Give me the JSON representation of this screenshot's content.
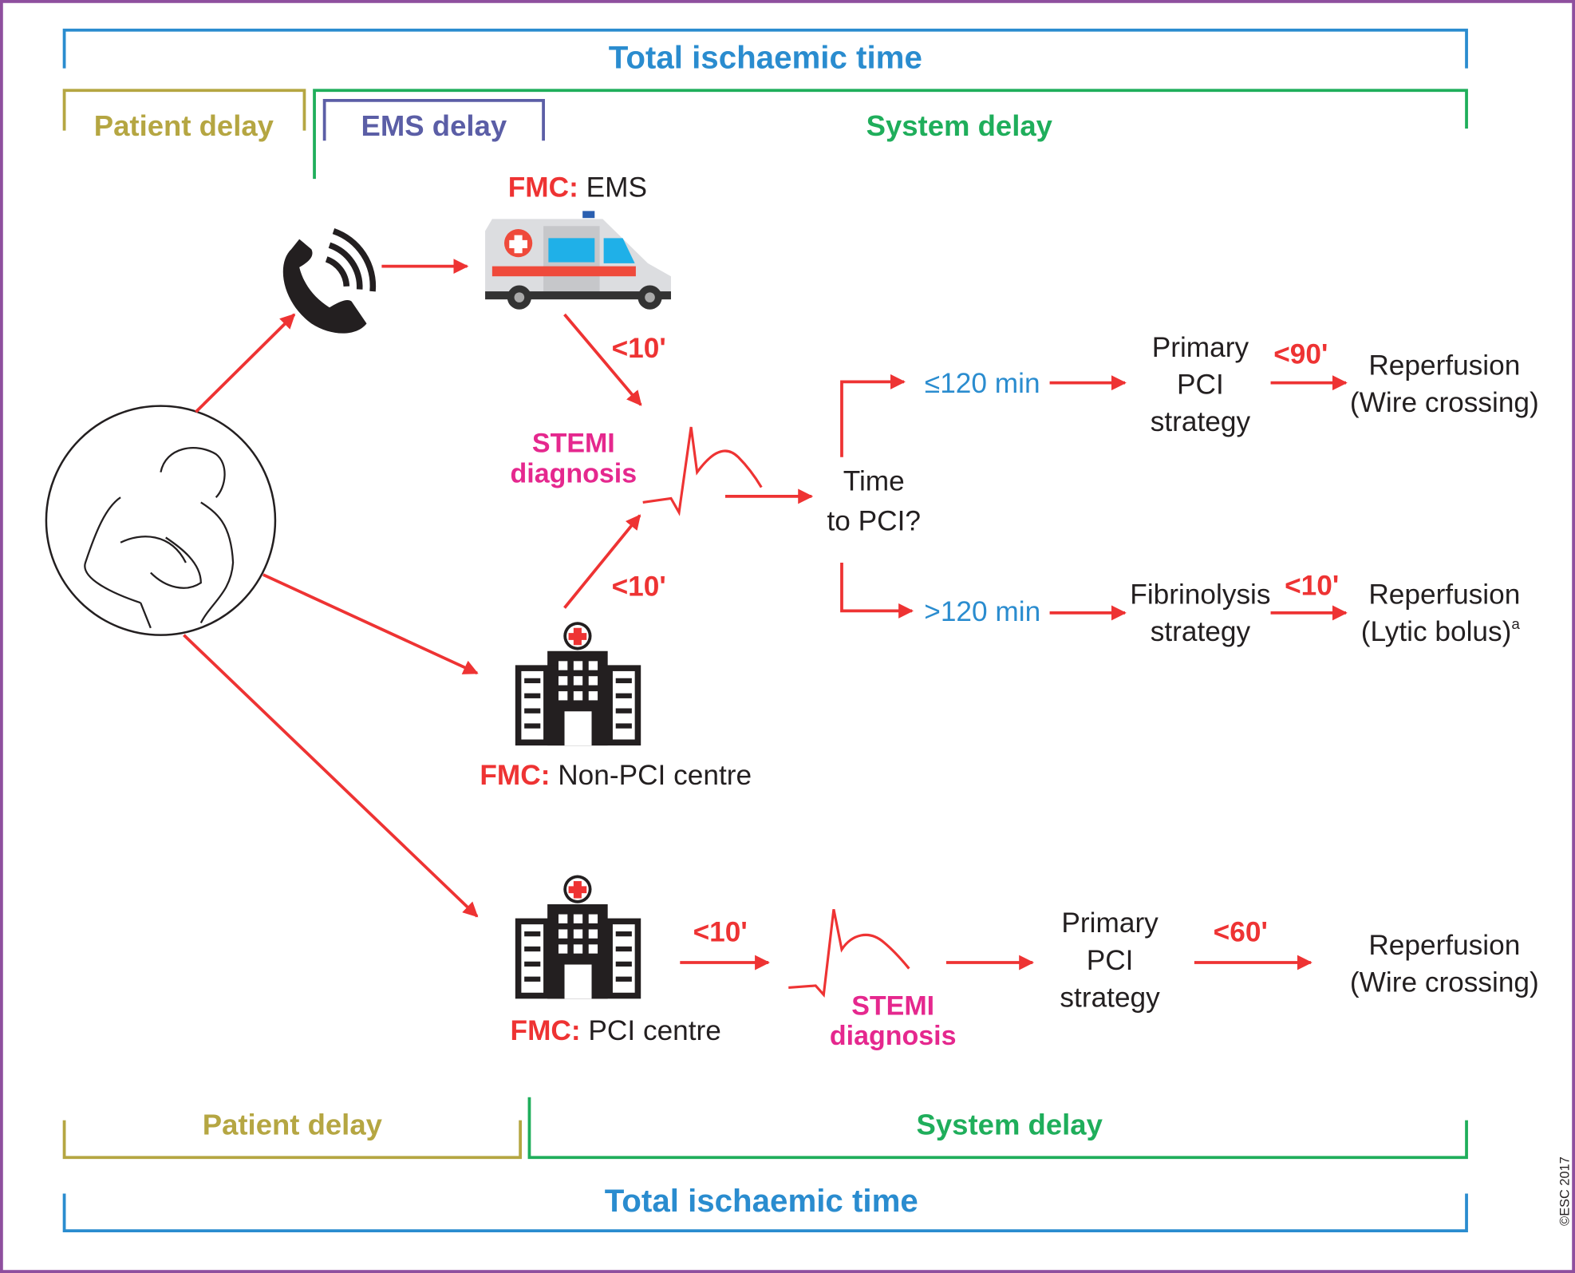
{
  "colors": {
    "total": "#2a8ccf",
    "patient": "#b5a642",
    "ems": "#5b5ea6",
    "system": "#1fae5b",
    "accent": "#ee3333",
    "stemi": "#e5288e",
    "frame": "#8e4f9e"
  },
  "top": {
    "total": "Total ischaemic time",
    "patient_delay": "Patient delay",
    "ems_delay": "EMS delay",
    "system_delay": "System delay"
  },
  "bottom": {
    "total": "Total ischaemic time",
    "patient_delay": "Patient delay",
    "system_delay": "System delay"
  },
  "fmc_prefix": "FMC:",
  "ems": {
    "label": "EMS",
    "time_to_diag": "<10'"
  },
  "stemi_diag": {
    "line1": "STEMI",
    "line2": "diagnosis"
  },
  "non_pci": {
    "label": "Non-PCI centre",
    "time_to_diag": "<10'"
  },
  "decision": {
    "line1": "Time",
    "line2": "to PCI?"
  },
  "branch_fast": {
    "condition": "≤120 min",
    "strategy": [
      "Primary",
      "PCI",
      "strategy"
    ],
    "time": "<90'",
    "outcome": [
      "Reperfusion",
      "(Wire crossing)"
    ]
  },
  "branch_slow": {
    "condition": ">120 min",
    "strategy": [
      "Fibrinolysis",
      "strategy"
    ],
    "time": "<10'",
    "outcome": [
      "Reperfusion",
      "(Lytic bolus)"
    ],
    "footnote": "a"
  },
  "pci_centre": {
    "label": "PCI centre",
    "time_to_diag": "<10'",
    "stemi": [
      "STEMI",
      "diagnosis"
    ],
    "strategy": [
      "Primary",
      "PCI",
      "strategy"
    ],
    "time": "<60'",
    "outcome": [
      "Reperfusion",
      "(Wire crossing)"
    ]
  },
  "copyright": "©ESC 2017",
  "icons": [
    "phone-icon",
    "ambulance-icon",
    "patient-chest-pain-icon",
    "hospital-icon",
    "ecg-icon"
  ]
}
